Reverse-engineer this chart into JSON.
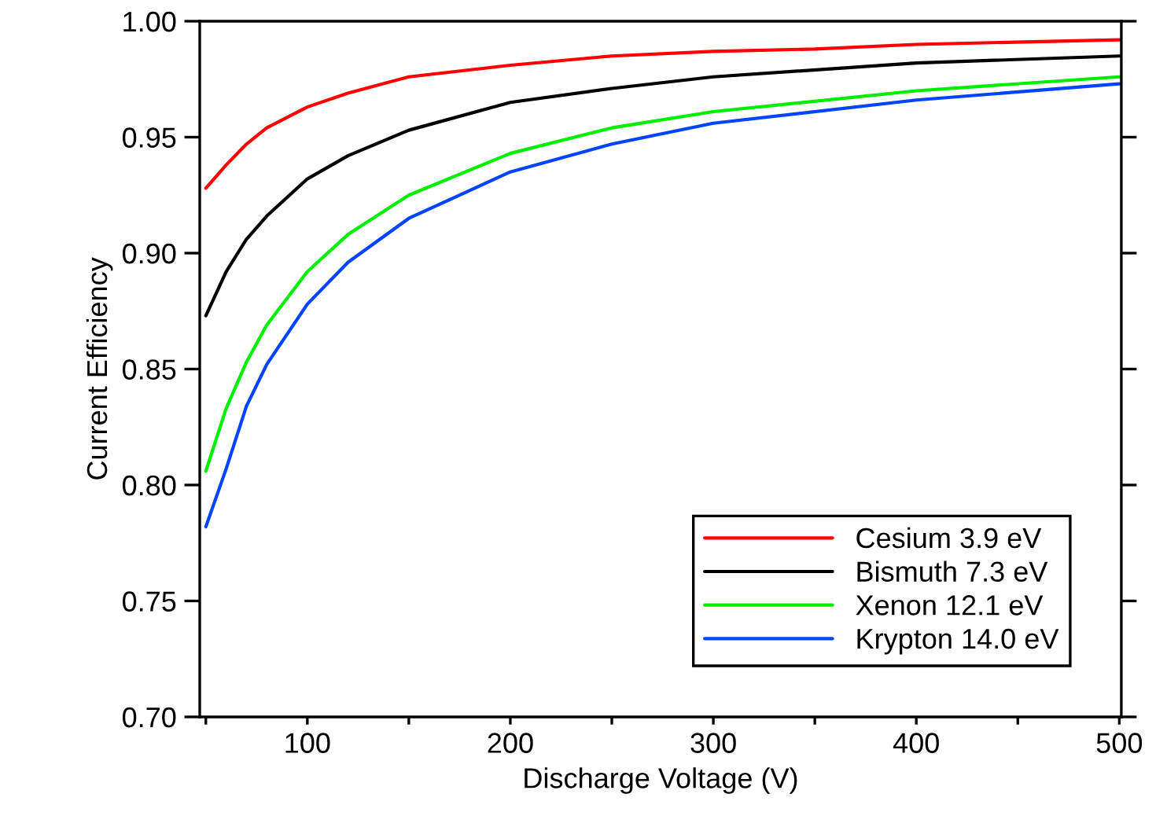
{
  "chart_data": {
    "type": "line",
    "xlabel": "Discharge Voltage (V)",
    "ylabel": "Current Efficiency",
    "xlim": [
      47,
      501
    ],
    "ylim": [
      0.7,
      1.0
    ],
    "xticks": [
      {
        "value": 50,
        "label": null
      },
      100,
      {
        "value": 150,
        "label": null
      },
      200,
      {
        "value": 250,
        "label": null
      },
      300,
      {
        "value": 350,
        "label": null
      },
      400,
      {
        "value": 450,
        "label": null
      },
      500
    ],
    "yticks": [
      {
        "value": 0.7,
        "label": "0.70"
      },
      {
        "value": 0.75,
        "label": "0.75"
      },
      {
        "value": 0.8,
        "label": "0.80"
      },
      {
        "value": 0.85,
        "label": "0.85"
      },
      {
        "value": 0.9,
        "label": "0.90"
      },
      {
        "value": 0.95,
        "label": "0.95"
      },
      {
        "value": 1.0,
        "label": "1.00"
      }
    ],
    "grid": false,
    "legend": "bottom right",
    "marker": "none",
    "line_style": "solid",
    "series": [
      {
        "name": "Cesium 3.9 eV",
        "color": "#ff0000",
        "x": [
          50,
          60,
          70,
          80,
          100,
          120,
          150,
          200,
          250,
          300,
          350,
          400,
          500
        ],
        "values": [
          0.928,
          0.938,
          0.947,
          0.954,
          0.963,
          0.969,
          0.976,
          0.981,
          0.985,
          0.987,
          0.988,
          0.99,
          0.992
        ]
      },
      {
        "name": "Bismuth 7.3 eV",
        "color": "#000000",
        "x": [
          50,
          60,
          70,
          80,
          100,
          120,
          150,
          200,
          250,
          300,
          400,
          500
        ],
        "values": [
          0.873,
          0.892,
          0.906,
          0.916,
          0.932,
          0.942,
          0.953,
          0.965,
          0.971,
          0.976,
          0.982,
          0.985
        ]
      },
      {
        "name": "Xenon 12.1 eV",
        "color": "#00ee00",
        "x": [
          50,
          60,
          70,
          80,
          100,
          120,
          150,
          200,
          250,
          300,
          400,
          500
        ],
        "values": [
          0.806,
          0.833,
          0.853,
          0.869,
          0.892,
          0.908,
          0.925,
          0.943,
          0.954,
          0.961,
          0.97,
          0.976
        ]
      },
      {
        "name": "Krypton 14.0 eV",
        "color": "#0044ff",
        "x": [
          50,
          60,
          70,
          80,
          100,
          120,
          150,
          200,
          250,
          300,
          400,
          500
        ],
        "values": [
          0.782,
          0.807,
          0.834,
          0.852,
          0.878,
          0.896,
          0.915,
          0.935,
          0.947,
          0.956,
          0.966,
          0.973
        ]
      }
    ]
  }
}
